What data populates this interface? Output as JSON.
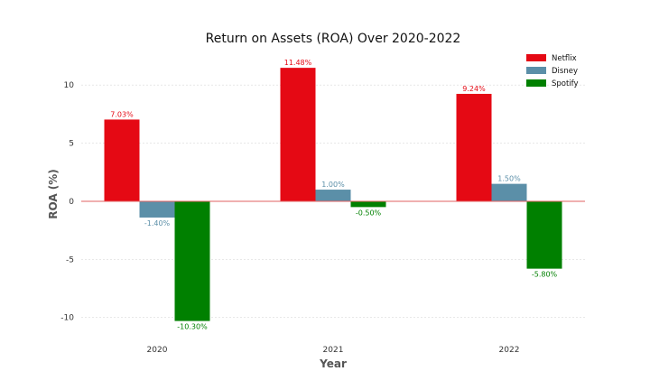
{
  "chart_data": {
    "type": "bar",
    "title": "Return on Assets (ROA) Over 2020-2022",
    "xlabel": "Year",
    "ylabel": "ROA (%)",
    "categories": [
      "2020",
      "2021",
      "2022"
    ],
    "ylim": [
      -11.5,
      12.5
    ],
    "yticks": [
      -10,
      -5,
      0,
      5,
      10
    ],
    "ytick_labels": [
      "-10",
      "-5",
      "0",
      "5",
      "10"
    ],
    "grid": true,
    "legend_position": "top-right",
    "series": [
      {
        "name": "Netflix",
        "color": "#e50914",
        "values": [
          7.03,
          11.48,
          9.24
        ],
        "labels": [
          "7.03%",
          "11.48%",
          "9.24%"
        ]
      },
      {
        "name": "Disney",
        "color": "#5b8fa8",
        "values": [
          -1.4,
          1.0,
          1.5
        ],
        "labels": [
          "-1.40%",
          "1.00%",
          "1.50%"
        ]
      },
      {
        "name": "Spotify",
        "color": "#008000",
        "values": [
          -10.3,
          -0.5,
          -5.8
        ],
        "labels": [
          "-10.30%",
          "-0.50%",
          "-5.80%"
        ]
      }
    ]
  }
}
